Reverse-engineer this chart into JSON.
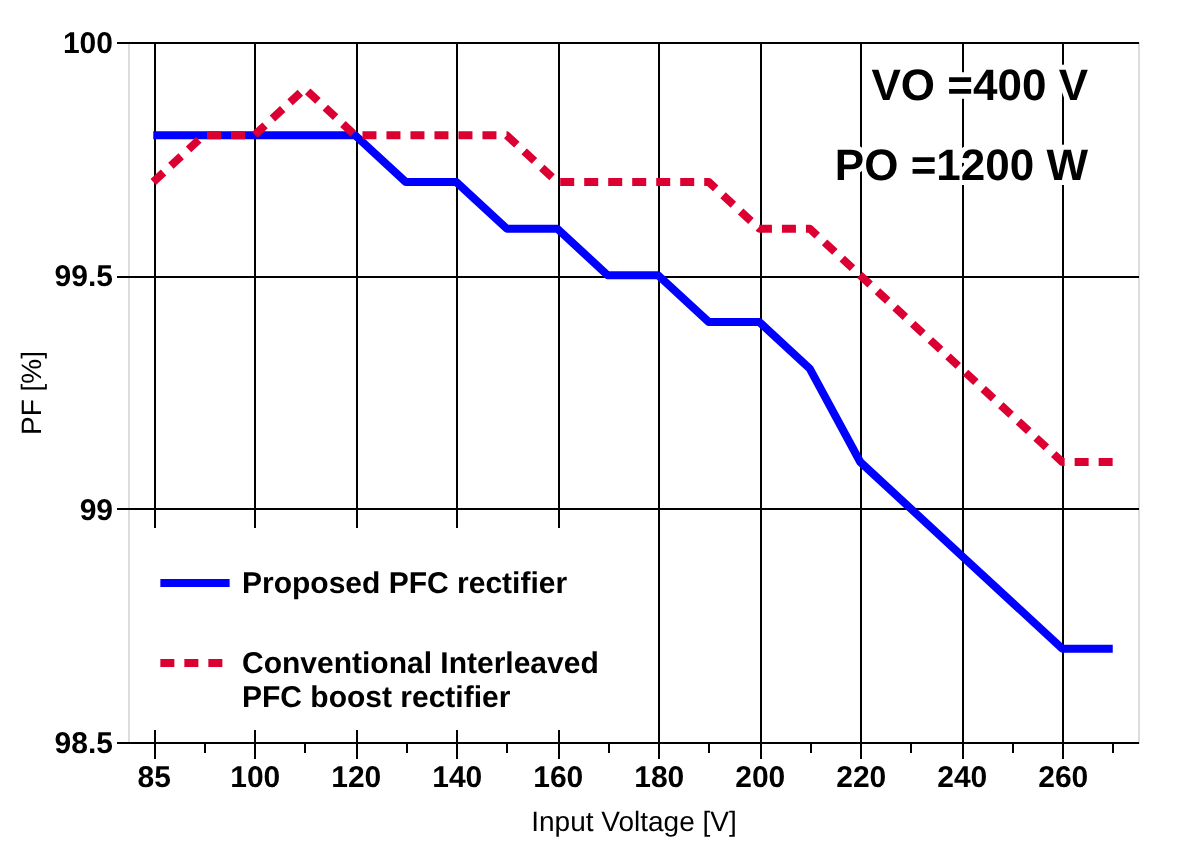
{
  "chart_data": {
    "type": "line",
    "xlabel": "Input Voltage [V]",
    "ylabel": "PF [%]",
    "categories": [
      "85",
      null,
      "100",
      null,
      "120",
      null,
      "140",
      null,
      "160",
      null,
      "180",
      null,
      "200",
      null,
      "220",
      null,
      "240",
      null,
      "260",
      null
    ],
    "ylim": [
      98.5,
      100
    ],
    "yticks": [
      98.5,
      99,
      99.5,
      100
    ],
    "grid": true,
    "legend": "bottom left",
    "marker": "none",
    "annotations": [
      "VO =400 V",
      "PO =1200 W"
    ],
    "series": [
      {
        "name": "Proposed PFC rectifier",
        "color": "#0000ff",
        "line_style": "solid",
        "values": [
          99.8,
          99.8,
          99.8,
          99.8,
          99.8,
          99.7,
          99.7,
          99.6,
          99.6,
          99.5,
          99.5,
          99.4,
          99.4,
          99.3,
          99.1,
          99.0,
          98.9,
          98.8,
          98.7,
          98.7
        ]
      },
      {
        "name": "Conventional Interleaved PFC boost rectifier",
        "color": "#dc0032",
        "line_style": "dashed",
        "values": [
          99.7,
          99.8,
          99.8,
          99.9,
          99.8,
          99.8,
          99.8,
          99.8,
          99.7,
          99.7,
          99.7,
          99.7,
          99.6,
          99.6,
          99.5,
          99.4,
          99.3,
          99.2,
          99.1,
          99.1
        ]
      }
    ]
  }
}
